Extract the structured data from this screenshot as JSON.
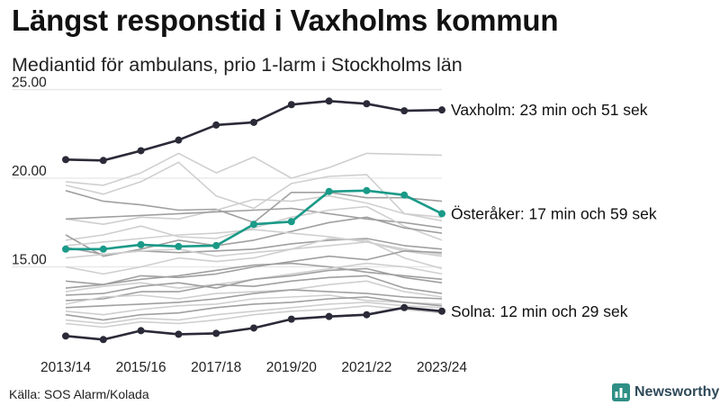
{
  "title": "Längst responstid i Vaxholms kommun",
  "subtitle": "Mediantid för ambulans, prio 1-larm i Stockholms län",
  "source": "Källa: SOS Alarm/Kolada",
  "brand": "Newsworthy",
  "colors": {
    "highlight_dark": "#2b2a38",
    "highlight_teal": "#1a9a88",
    "background_dark": "#a0a0a0",
    "background_light": "#cfcfcf",
    "grid": "#e6e6e6",
    "brand": "#2f8f86"
  },
  "chart_data": {
    "type": "line",
    "title": "",
    "xlabel": "",
    "ylabel": "",
    "x": [
      "2013/14",
      "2014/15",
      "2015/16",
      "2016/17",
      "2017/18",
      "2018/19",
      "2019/20",
      "2020/21",
      "2021/22",
      "2022/23",
      "2023/24"
    ],
    "x_tick_labels": [
      "2013/14",
      "2015/16",
      "2017/18",
      "2019/20",
      "2021/22",
      "2023/24"
    ],
    "y_tick_labels": [
      "15.00",
      "20.00",
      "25.00"
    ],
    "ylim": [
      10.5,
      25.0
    ],
    "grid": true,
    "highlighted_series": [
      {
        "name": "Vaxholm",
        "label": "Vaxholm: 23 min och 51 sek",
        "color": "#2b2a38",
        "values": [
          21.05,
          21.0,
          21.55,
          22.15,
          23.0,
          23.15,
          24.15,
          24.35,
          24.2,
          23.8,
          23.85
        ]
      },
      {
        "name": "Österåker",
        "label": "Österåker: 17 min och 59 sek",
        "color": "#1a9a88",
        "values": [
          16.0,
          16.0,
          16.25,
          16.15,
          16.2,
          17.4,
          17.55,
          19.25,
          19.3,
          19.05,
          18.0
        ]
      },
      {
        "name": "Solna",
        "label": "Solna: 12 min och 29 sek",
        "color": "#2b2a38",
        "values": [
          11.1,
          10.9,
          11.4,
          11.2,
          11.25,
          11.55,
          12.05,
          12.2,
          12.3,
          12.7,
          12.5
        ]
      }
    ],
    "background_series": [
      {
        "shade": "light",
        "values": [
          19.8,
          19.6,
          20.3,
          21.4,
          20.3,
          21.2,
          20.0,
          20.6,
          21.4,
          21.35,
          21.3
        ]
      },
      {
        "shade": "dark",
        "values": [
          19.3,
          18.7,
          18.5,
          18.2,
          18.25,
          17.5,
          19.2,
          19.2,
          18.9,
          18.9,
          18.7
        ]
      },
      {
        "shade": "light",
        "values": [
          19.6,
          19.1,
          19.8,
          20.9,
          19.0,
          18.3,
          19.7,
          20.1,
          20.2,
          18.0,
          17.6
        ]
      },
      {
        "shade": "light",
        "values": [
          17.7,
          17.4,
          17.8,
          17.7,
          18.2,
          18.8,
          18.7,
          19.0,
          18.6,
          18.0,
          17.8
        ]
      },
      {
        "shade": "dark",
        "values": [
          17.7,
          17.8,
          17.9,
          18.0,
          18.1,
          18.2,
          18.3,
          18.0,
          17.7,
          17.5,
          17.2
        ]
      },
      {
        "shade": "light",
        "values": [
          16.5,
          16.8,
          17.3,
          16.7,
          16.6,
          17.2,
          17.8,
          18.2,
          18.4,
          17.3,
          16.5
        ]
      },
      {
        "shade": "dark",
        "values": [
          16.8,
          15.6,
          16.0,
          16.5,
          16.2,
          16.5,
          17.0,
          17.5,
          17.8,
          17.2,
          16.9
        ]
      },
      {
        "shade": "light",
        "values": [
          16.2,
          16.4,
          16.6,
          16.8,
          16.9,
          17.1,
          16.9,
          16.7,
          16.4,
          16.0,
          15.7
        ]
      },
      {
        "shade": "dark",
        "values": [
          16.1,
          15.7,
          15.9,
          15.8,
          15.9,
          16.0,
          16.3,
          16.5,
          16.6,
          16.2,
          16.0
        ]
      },
      {
        "shade": "light",
        "values": [
          15.5,
          15.7,
          15.9,
          16.0,
          15.6,
          15.8,
          16.0,
          16.2,
          16.4,
          15.9,
          15.6
        ]
      },
      {
        "shade": "light",
        "values": [
          15.0,
          14.6,
          15.0,
          15.5,
          15.3,
          15.5,
          16.0,
          16.6,
          16.5,
          15.5,
          14.9
        ]
      },
      {
        "shade": "dark",
        "values": [
          14.2,
          14.0,
          14.5,
          14.4,
          14.6,
          15.0,
          15.3,
          15.6,
          15.4,
          15.9,
          15.8
        ]
      },
      {
        "shade": "dark",
        "values": [
          13.8,
          14.0,
          14.3,
          14.5,
          14.8,
          15.1,
          15.2,
          15.0,
          14.7,
          14.5,
          14.3
        ]
      },
      {
        "shade": "light",
        "values": [
          13.6,
          13.9,
          14.1,
          13.8,
          14.0,
          14.3,
          14.6,
          14.9,
          15.2,
          15.0,
          14.6
        ]
      },
      {
        "shade": "dark",
        "values": [
          13.4,
          13.5,
          13.9,
          14.1,
          13.8,
          14.3,
          14.5,
          14.8,
          14.9,
          14.4,
          14.1
        ]
      },
      {
        "shade": "dark",
        "values": [
          13.1,
          13.2,
          13.6,
          13.6,
          14.0,
          13.9,
          14.2,
          14.4,
          14.5,
          13.8,
          13.5
        ]
      },
      {
        "shade": "light",
        "values": [
          12.9,
          13.3,
          13.4,
          13.2,
          13.5,
          13.6,
          13.7,
          14.0,
          14.2,
          13.6,
          13.3
        ]
      },
      {
        "shade": "dark",
        "values": [
          12.7,
          12.8,
          12.9,
          13.0,
          13.2,
          13.5,
          13.7,
          13.6,
          13.5,
          13.3,
          13.2
        ]
      },
      {
        "shade": "light",
        "values": [
          12.5,
          12.3,
          12.6,
          12.8,
          12.9,
          13.2,
          13.3,
          13.4,
          13.1,
          13.0,
          12.9
        ]
      },
      {
        "shade": "dark",
        "values": [
          12.3,
          12.0,
          12.3,
          12.4,
          12.7,
          12.9,
          13.0,
          13.2,
          13.3,
          13.0,
          12.8
        ]
      },
      {
        "shade": "light",
        "values": [
          12.0,
          11.8,
          12.1,
          12.0,
          12.3,
          12.5,
          12.7,
          12.9,
          13.0,
          12.8,
          12.7
        ]
      },
      {
        "shade": "light",
        "values": [
          11.8,
          11.6,
          11.9,
          11.8,
          12.0,
          12.3,
          12.5,
          12.6,
          12.8,
          12.6,
          12.4
        ]
      }
    ]
  }
}
